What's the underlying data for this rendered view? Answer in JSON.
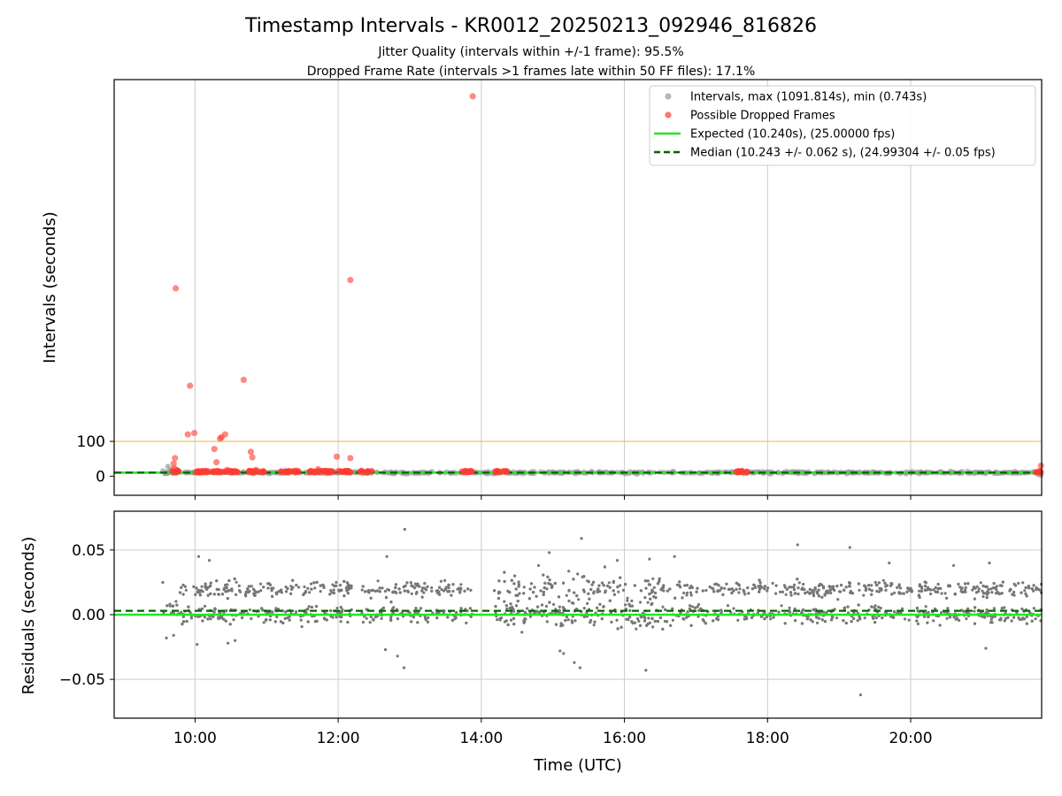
{
  "title": "Timestamp Intervals - KR0012_20250213_092946_816826",
  "subtitle_1": "Jitter Quality (intervals within +/-1 frame): 95.5%",
  "subtitle_2": "Dropped Frame Rate (intervals >1 frames late within 50 FF files): 17.1%",
  "colors": {
    "interval_points": "#999999",
    "dropped_points": "#ff3b30",
    "expected_line": "#22e822",
    "median_line": "#006400",
    "threshold_line": "#f5c242",
    "residual_points": "#777777",
    "grid": "#cccccc"
  },
  "chart_data": [
    {
      "type": "scatter",
      "ylabel": "Intervals (seconds)",
      "xlim": [
        8.87,
        21.83
      ],
      "ylim": [
        -55,
        1140
      ],
      "y_ticks": [
        0,
        100
      ],
      "y_tick_labels": [
        "0",
        "100"
      ],
      "x_ticks": [
        10,
        12,
        14,
        16,
        18,
        20
      ],
      "grid": "vertical",
      "legend_position": "upper-right",
      "threshold_line": 100,
      "expected_interval": 10.24,
      "median_interval": 10.243,
      "legend": [
        "Intervals, max (1091.814s), min (0.743s)",
        "Possible Dropped Frames",
        "Expected (10.240s), (25.00000 fps)",
        "Median (10.243 +/- 0.062 s), (24.99304 +/- 0.05 fps)"
      ],
      "series": [
        {
          "name": "Intervals, max (1091.814s), min (0.743s)",
          "x_range": [
            9.55,
            21.83
          ],
          "typical_y": 10.24,
          "scattered_points": [
            [
              9.55,
              15
            ],
            [
              9.62,
              28
            ],
            [
              9.66,
              20
            ],
            [
              21.78,
              5
            ],
            [
              21.82,
              2
            ]
          ]
        },
        {
          "name": "Possible Dropped Frames",
          "points": [
            [
              9.73,
              540
            ],
            [
              9.72,
              52
            ],
            [
              9.7,
              36
            ],
            [
              9.71,
              22
            ],
            [
              9.74,
              18
            ],
            [
              9.76,
              15
            ],
            [
              9.9,
              120
            ],
            [
              9.99,
              124
            ],
            [
              9.93,
              260
            ],
            [
              10.15,
              15
            ],
            [
              10.27,
              78
            ],
            [
              10.3,
              40
            ],
            [
              10.35,
              108
            ],
            [
              10.37,
              112
            ],
            [
              10.42,
              120
            ],
            [
              10.45,
              18
            ],
            [
              10.68,
              277
            ],
            [
              10.78,
              70
            ],
            [
              10.8,
              54
            ],
            [
              10.85,
              18
            ],
            [
              11.42,
              16
            ],
            [
              11.72,
              20
            ],
            [
              11.98,
              56
            ],
            [
              12.17,
              52
            ],
            [
              12.17,
              564
            ],
            [
              13.88,
              1092
            ],
            [
              21.82,
              30
            ]
          ],
          "clusters": [
            [
              9.68,
              9.77
            ],
            [
              9.97,
              10.2
            ],
            [
              10.24,
              10.38
            ],
            [
              10.4,
              10.6
            ],
            [
              10.75,
              10.98
            ],
            [
              11.2,
              11.45
            ],
            [
              11.6,
              11.95
            ],
            [
              12.0,
              12.2
            ],
            [
              12.3,
              12.48
            ],
            [
              13.7,
              13.88
            ],
            [
              14.2,
              14.36
            ],
            [
              17.55,
              17.72
            ],
            [
              21.75,
              21.83
            ]
          ]
        }
      ]
    },
    {
      "type": "scatter",
      "xlabel": "Time (UTC)",
      "ylabel": "Residuals (seconds)",
      "xlim": [
        8.87,
        21.83
      ],
      "ylim": [
        -0.08,
        0.08
      ],
      "y_ticks": [
        0.05,
        0.0,
        -0.05
      ],
      "y_tick_labels": [
        "0.05",
        "0.00",
        "−0.05"
      ],
      "x_ticks": [
        10,
        12,
        14,
        16,
        18,
        20
      ],
      "x_tick_labels": [
        "10:00",
        "12:00",
        "14:00",
        "16:00",
        "18:00",
        "20:00"
      ],
      "grid": "both",
      "expected_residual": 0.0,
      "median_residual": 0.003,
      "series": [
        {
          "bands": [
            0.0,
            0.02
          ],
          "gaps": [
            [
              12.2,
              12.33
            ],
            [
              13.88,
              14.18
            ]
          ],
          "outliers": [
            [
              9.55,
              0.025
            ],
            [
              9.6,
              -0.018
            ],
            [
              9.7,
              -0.016
            ],
            [
              10.05,
              0.045
            ],
            [
              10.03,
              -0.023
            ],
            [
              10.2,
              0.042
            ],
            [
              10.46,
              -0.022
            ],
            [
              10.56,
              -0.02
            ],
            [
              12.66,
              -0.027
            ],
            [
              12.68,
              0.045
            ],
            [
              12.83,
              -0.032
            ],
            [
              12.92,
              -0.041
            ],
            [
              12.93,
              0.066
            ],
            [
              14.8,
              0.038
            ],
            [
              14.95,
              0.048
            ],
            [
              15.1,
              -0.028
            ],
            [
              15.15,
              -0.03
            ],
            [
              15.3,
              -0.037
            ],
            [
              15.38,
              -0.041
            ],
            [
              15.4,
              0.059
            ],
            [
              15.9,
              0.042
            ],
            [
              16.3,
              -0.043
            ],
            [
              16.35,
              0.043
            ],
            [
              16.7,
              0.045
            ],
            [
              18.42,
              0.054
            ],
            [
              19.15,
              0.052
            ],
            [
              19.3,
              -0.062
            ],
            [
              19.7,
              0.04
            ],
            [
              20.6,
              0.038
            ],
            [
              21.05,
              -0.026
            ],
            [
              21.1,
              0.04
            ]
          ]
        }
      ]
    }
  ]
}
